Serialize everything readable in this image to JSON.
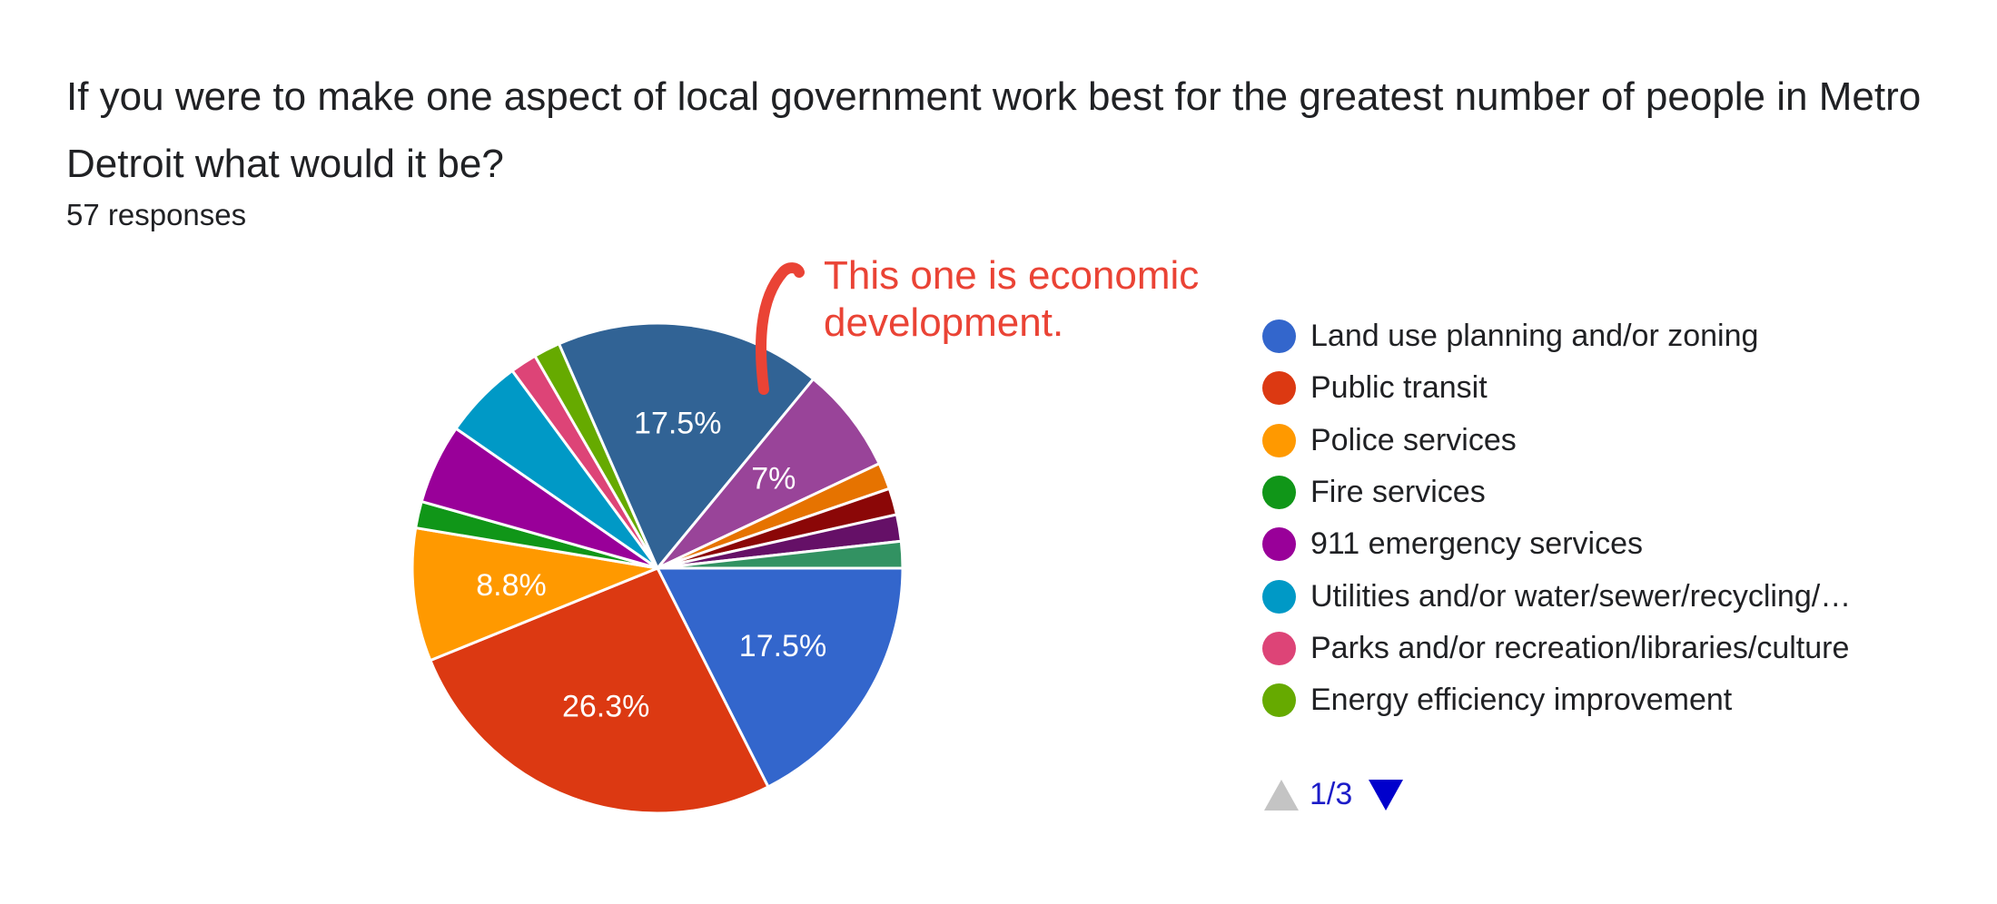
{
  "question": {
    "title": "If you were to make one aspect of local government work best for the greatest number of people in Metro Detroit what would it be?",
    "response_count": "57 responses"
  },
  "annotation": {
    "line1": "This one is economic",
    "line2": "development.",
    "color": "#ea4335"
  },
  "pager": {
    "text": "1/3",
    "up_color": "#c4c4c4",
    "down_color": "#0000cc"
  },
  "legend": [
    {
      "label": "Land use planning and/or zoning",
      "color": "#3366cc"
    },
    {
      "label": "Public transit",
      "color": "#dc3912"
    },
    {
      "label": "Police services",
      "color": "#ff9900"
    },
    {
      "label": "Fire services",
      "color": "#109618"
    },
    {
      "label": "911 emergency services",
      "color": "#990099"
    },
    {
      "label": "Utilities and/or water/sewer/recycling/…",
      "color": "#0099c6"
    },
    {
      "label": "Parks and/or recreation/libraries/culture",
      "color": "#dd4477"
    },
    {
      "label": "Energy efficiency improvement",
      "color": "#66aa00"
    }
  ],
  "chart_data": {
    "type": "pie",
    "total_responses": 57,
    "slices": [
      {
        "name": "Land use planning and/or zoning",
        "count": 10,
        "percent": 17.5,
        "label": "17.5%",
        "color": "#3366cc"
      },
      {
        "name": "Public transit",
        "count": 15,
        "percent": 26.3,
        "label": "26.3%",
        "color": "#dc3912"
      },
      {
        "name": "Police services",
        "count": 5,
        "percent": 8.8,
        "label": "8.8%",
        "color": "#ff9900"
      },
      {
        "name": "Fire services",
        "count": 1,
        "percent": 1.8,
        "label": "",
        "color": "#109618"
      },
      {
        "name": "911 emergency services",
        "count": 3,
        "percent": 5.3,
        "label": "",
        "color": "#990099"
      },
      {
        "name": "Utilities and/or water/sewer/recycling/…",
        "count": 3,
        "percent": 5.3,
        "label": "",
        "color": "#0099c6"
      },
      {
        "name": "Parks and/or recreation/libraries/culture",
        "count": 1,
        "percent": 1.8,
        "label": "",
        "color": "#dd4477"
      },
      {
        "name": "Energy efficiency improvement",
        "count": 1,
        "percent": 1.8,
        "label": "",
        "color": "#66aa00"
      },
      {
        "name": "",
        "count": 10,
        "percent": 17.5,
        "label": "17.5%",
        "color": "#316395"
      },
      {
        "name": "",
        "count": 4,
        "percent": 7.0,
        "label": "7%",
        "color": "#994499"
      },
      {
        "name": "",
        "count": 1,
        "percent": 1.8,
        "label": "",
        "color": "#e67300"
      },
      {
        "name": "",
        "count": 1,
        "percent": 1.8,
        "label": "",
        "color": "#8b0707"
      },
      {
        "name": "",
        "count": 1,
        "percent": 1.8,
        "label": "",
        "color": "#651067"
      },
      {
        "name": "",
        "count": 1,
        "percent": 1.8,
        "label": "",
        "color": "#329262"
      }
    ],
    "legend_position": "right"
  }
}
